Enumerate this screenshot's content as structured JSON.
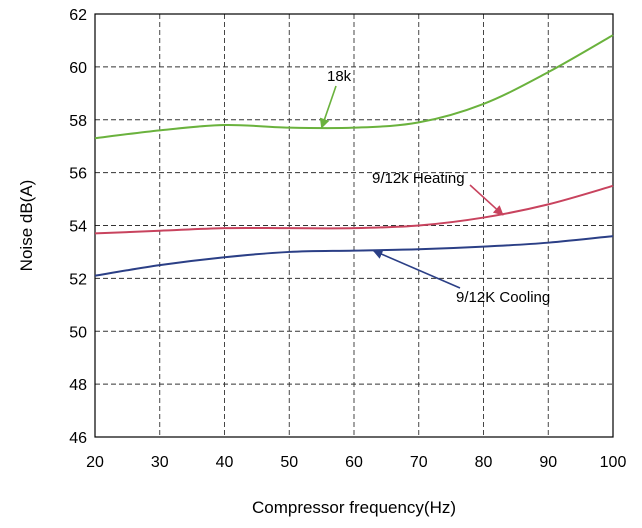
{
  "chart_data": {
    "type": "line",
    "xlabel": "Compressor frequency(Hz)",
    "ylabel": "Noise dB(A)",
    "xlim": [
      20,
      100
    ],
    "ylim": [
      46,
      62
    ],
    "x_ticks": [
      20,
      30,
      40,
      50,
      60,
      70,
      80,
      90,
      100
    ],
    "y_ticks": [
      46,
      48,
      50,
      52,
      54,
      56,
      58,
      60,
      62
    ],
    "grid": true,
    "series": [
      {
        "name": "18k",
        "color": "#6ab23d",
        "x": [
          20,
          30,
          40,
          50,
          60,
          70,
          80,
          90,
          100
        ],
        "y": [
          57.3,
          57.6,
          57.8,
          57.7,
          57.7,
          57.9,
          58.6,
          59.8,
          61.2
        ]
      },
      {
        "name": "9/12k Heating",
        "color": "#c8435e",
        "x": [
          20,
          30,
          40,
          50,
          60,
          70,
          80,
          90,
          100
        ],
        "y": [
          53.7,
          53.8,
          53.9,
          53.9,
          53.9,
          54.0,
          54.3,
          54.8,
          55.5
        ]
      },
      {
        "name": "9/12K Cooling",
        "color": "#2b3f86",
        "x": [
          20,
          30,
          40,
          50,
          60,
          70,
          80,
          90,
          100
        ],
        "y": [
          52.1,
          52.5,
          52.8,
          53.0,
          53.05,
          53.1,
          53.2,
          53.35,
          53.6
        ]
      }
    ],
    "annotations": [
      {
        "series": 0,
        "text": "18k",
        "arrow_to_x": 55,
        "arrow_to_y": 57.7
      },
      {
        "series": 1,
        "text": "9/12k Heating",
        "arrow_to_x": 83,
        "arrow_to_y": 54.4
      },
      {
        "series": 2,
        "text": "9/12K Cooling",
        "arrow_to_x": 63,
        "arrow_to_y": 53.05
      }
    ]
  }
}
